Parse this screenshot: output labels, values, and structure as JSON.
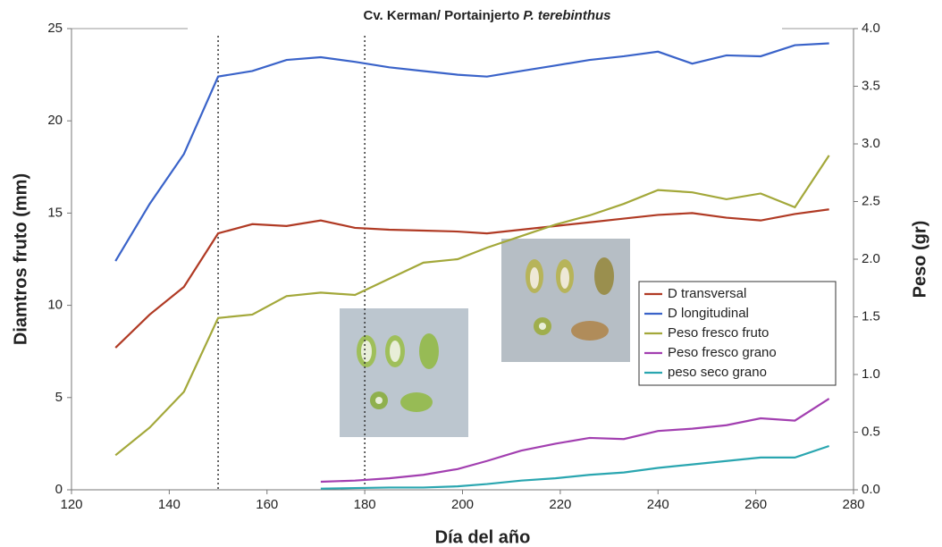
{
  "chart_data": {
    "type": "line",
    "title": [
      "Cv. Kerman/ Portainjerto",
      "P. terebinthus"
    ],
    "x_label": "Día del año",
    "y_label": "Diamtros fruto (mm)",
    "y2_label": "Peso (gr)",
    "x": [
      129,
      136,
      143,
      150,
      157,
      164,
      171,
      178,
      185,
      192,
      199,
      205,
      212,
      219,
      226,
      233,
      240,
      247,
      254,
      261,
      268,
      275
    ],
    "series": [
      {
        "name": "D transversal",
        "color": "#b03a24",
        "axis": "y",
        "values": [
          7.7,
          9.5,
          11,
          13.9,
          14.4,
          14.3,
          14.6,
          14.2,
          14.1,
          14.05,
          14.0,
          13.9,
          14.1,
          14.3,
          14.5,
          14.7,
          14.9,
          15.0,
          14.75,
          14.6,
          14.95,
          15.2
        ]
      },
      {
        "name": "D longitudinal",
        "color": "#3a63c9",
        "axis": "y",
        "values": [
          12.4,
          15.5,
          18.2,
          22.4,
          22.7,
          23.3,
          23.45,
          23.2,
          22.9,
          22.7,
          22.5,
          22.4,
          22.7,
          23.0,
          23.3,
          23.5,
          23.75,
          23.1,
          23.55,
          23.5,
          24.1,
          24.2
        ]
      },
      {
        "name": "Peso fresco fruto",
        "color": "#a3a83a",
        "axis": "y2",
        "values": [
          0.3,
          0.54,
          0.85,
          1.49,
          1.52,
          1.68,
          1.71,
          1.69,
          1.83,
          1.97,
          2.0,
          2.1,
          2.2,
          2.3,
          2.38,
          2.48,
          2.6,
          2.58,
          2.52,
          2.57,
          2.45,
          2.9
        ]
      },
      {
        "name": "Peso fresco grano",
        "color": "#a23fb0",
        "axis": "y2",
        "values": [
          null,
          null,
          null,
          null,
          null,
          null,
          0.07,
          0.08,
          0.1,
          0.13,
          0.18,
          0.25,
          0.34,
          0.4,
          0.45,
          0.44,
          0.51,
          0.53,
          0.56,
          0.62,
          0.6,
          0.79
        ]
      },
      {
        "name": "peso seco grano",
        "color": "#2aa6b0",
        "axis": "y2",
        "values": [
          null,
          null,
          null,
          null,
          null,
          null,
          0.01,
          0.015,
          0.02,
          0.02,
          0.03,
          0.05,
          0.08,
          0.1,
          0.13,
          0.15,
          0.19,
          0.22,
          0.25,
          0.28,
          0.28,
          0.38
        ]
      }
    ],
    "vlines": [
      150,
      180
    ],
    "xlim": [
      120,
      280
    ],
    "xticks": [
      120,
      140,
      160,
      180,
      200,
      220,
      240,
      260,
      280
    ],
    "ylim": [
      0,
      25
    ],
    "yticks": [
      0,
      5,
      10,
      15,
      20,
      25
    ],
    "y2lim": [
      0,
      4
    ],
    "y2ticks": [
      {
        "value": 0,
        "label": "0.0"
      },
      {
        "value": 0.5,
        "label": "0.5"
      },
      {
        "value": 1,
        "label": "1.0"
      },
      {
        "value": 1.5,
        "label": "1.5"
      },
      {
        "value": 2,
        "label": "2.0"
      },
      {
        "value": 2.5,
        "label": "2.5"
      },
      {
        "value": 3,
        "label": "3.0"
      },
      {
        "value": 3.5,
        "label": "3.5"
      },
      {
        "value": 4,
        "label": "4.0"
      }
    ],
    "legend": "right",
    "grid": false
  }
}
